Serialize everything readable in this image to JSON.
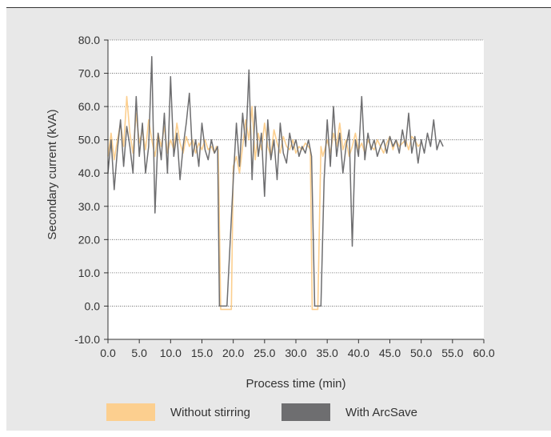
{
  "chart_data": {
    "type": "line",
    "xlabel": "Process time (min)",
    "ylabel": "Secondary current (kVA)",
    "xlim": [
      0,
      60
    ],
    "ylim": [
      -10,
      80
    ],
    "x_ticks": [
      "0.0",
      "5.0",
      "10.0",
      "15.0",
      "20.0",
      "25.0",
      "30.0",
      "35.0",
      "40.0",
      "45.0",
      "50.0",
      "55.0",
      "60.0"
    ],
    "y_ticks": [
      "80.0",
      "70.0",
      "60.0",
      "50.0",
      "40.0",
      "30.0",
      "20.0",
      "10.0",
      "0.0",
      "-10.0"
    ],
    "grid": "horizontal dotted",
    "legend_position": "bottom",
    "series": [
      {
        "name": "Without stirring",
        "color": "#fccf8f",
        "x": [
          0.0,
          0.5,
          1.0,
          1.5,
          2.0,
          2.5,
          3.0,
          3.5,
          4.0,
          4.5,
          5.0,
          5.5,
          6.0,
          6.5,
          7.0,
          7.5,
          8.0,
          8.5,
          9.0,
          9.5,
          10.0,
          10.5,
          11.0,
          11.5,
          12.0,
          12.5,
          13.0,
          13.5,
          14.0,
          14.5,
          15.0,
          15.5,
          16.0,
          16.5,
          17.0,
          17.3,
          17.6,
          18.0,
          19.0,
          19.7,
          20.0,
          20.5,
          21.0,
          21.5,
          22.0,
          22.5,
          23.0,
          23.5,
          24.0,
          24.5,
          25.0,
          25.5,
          26.0,
          26.5,
          27.0,
          27.5,
          28.0,
          28.5,
          29.0,
          29.5,
          30.0,
          30.5,
          31.0,
          31.5,
          32.0,
          32.3,
          32.6,
          33.0,
          33.5,
          34.0,
          34.3,
          34.6,
          35.0,
          35.5,
          36.0,
          36.5,
          37.0,
          37.5,
          38.0,
          38.5,
          39.0,
          39.5,
          40.0,
          40.5,
          41.0,
          41.5,
          42.0,
          42.5,
          43.0,
          43.5,
          44.0,
          44.5,
          45.0,
          45.5,
          46.0,
          46.5,
          47.0,
          47.5,
          48.0,
          48.5,
          49.0,
          49.5,
          50.0
        ],
        "values": [
          45,
          52,
          44,
          50,
          55,
          48,
          63,
          52,
          46,
          58,
          49,
          53,
          47,
          56,
          50,
          45,
          52,
          48,
          54,
          46,
          50,
          47,
          55,
          49,
          46,
          51,
          48,
          50,
          46,
          49,
          47,
          50,
          47,
          48,
          46,
          48,
          47,
          -1,
          -1,
          -1,
          42,
          45,
          40,
          48,
          56,
          50,
          60,
          44,
          52,
          47,
          55,
          48,
          45,
          53,
          49,
          46,
          51,
          48,
          47,
          50,
          46,
          48,
          47,
          49,
          48,
          47,
          -1,
          -1,
          -1,
          48,
          45,
          47,
          50,
          46,
          52,
          48,
          55,
          47,
          50,
          45,
          48,
          52,
          47,
          49,
          46,
          50,
          48,
          47,
          50,
          48,
          46,
          49,
          51,
          47,
          50,
          48,
          49,
          50,
          47,
          51,
          50,
          48,
          49
        ]
      },
      {
        "name": "With ArcSave",
        "color": "#6e6e70",
        "x": [
          0.0,
          0.5,
          1.0,
          1.5,
          2.0,
          2.5,
          3.0,
          3.5,
          4.0,
          4.5,
          5.0,
          5.5,
          6.0,
          6.5,
          7.0,
          7.5,
          8.0,
          8.5,
          9.0,
          9.5,
          10.0,
          10.5,
          11.0,
          11.5,
          12.0,
          12.5,
          13.0,
          13.5,
          14.0,
          14.5,
          15.0,
          15.5,
          16.0,
          16.5,
          17.0,
          17.5,
          17.8,
          18.0,
          19.0,
          20.0,
          20.5,
          21.0,
          21.5,
          22.0,
          22.5,
          23.0,
          23.5,
          24.0,
          24.5,
          25.0,
          25.5,
          26.0,
          26.5,
          27.0,
          27.5,
          28.0,
          28.5,
          29.0,
          29.5,
          30.0,
          30.5,
          31.0,
          31.5,
          32.0,
          32.5,
          33.0,
          34.0,
          34.5,
          35.0,
          35.5,
          36.0,
          36.5,
          37.0,
          37.5,
          38.0,
          38.5,
          39.0,
          39.5,
          40.0,
          40.5,
          41.0,
          41.5,
          42.0,
          42.5,
          43.0,
          43.5,
          44.0,
          44.5,
          45.0,
          45.5,
          46.0,
          46.5,
          47.0,
          47.5,
          48.0,
          48.5,
          49.0,
          49.5,
          50.0,
          50.5,
          51.0,
          51.5,
          52.0,
          52.5,
          53.0,
          53.5
        ],
        "values": [
          40,
          50,
          35,
          47,
          56,
          42,
          54,
          48,
          40,
          63,
          45,
          55,
          40,
          48,
          75,
          28,
          52,
          44,
          58,
          40,
          69,
          45,
          52,
          38,
          48,
          55,
          64,
          45,
          50,
          42,
          55,
          47,
          44,
          50,
          46,
          48,
          0,
          0,
          0,
          38,
          55,
          42,
          58,
          48,
          71,
          38,
          60,
          45,
          52,
          33,
          56,
          44,
          50,
          38,
          55,
          46,
          43,
          52,
          47,
          50,
          45,
          48,
          46,
          50,
          45,
          0,
          0,
          38,
          56,
          42,
          60,
          45,
          52,
          40,
          48,
          53,
          18,
          50,
          45,
          63,
          44,
          52,
          47,
          50,
          45,
          48,
          50,
          46,
          51,
          48,
          50,
          46,
          53,
          48,
          58,
          46,
          51,
          43,
          50,
          46,
          52,
          48,
          56,
          47,
          50,
          48
        ]
      }
    ]
  }
}
